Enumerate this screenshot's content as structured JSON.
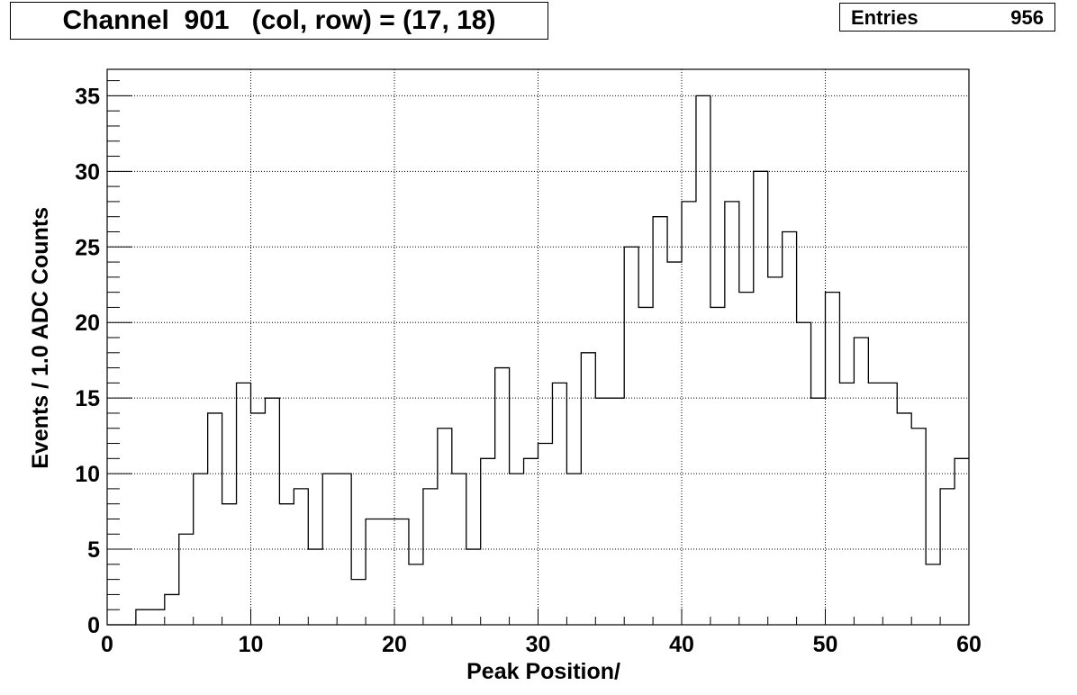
{
  "title_box": {
    "title": "Channel  901   (col, row) = (17, 18)"
  },
  "stats_box": {
    "label": "Entries",
    "value": "956"
  },
  "chart_data": {
    "type": "bar",
    "histogram": true,
    "xlabel": "Peak Position/",
    "ylabel": "Events / 1.0 ADC Counts",
    "xlim": [
      0,
      60
    ],
    "ylim": [
      0,
      36.75
    ],
    "grid": true,
    "bin_width": 1,
    "x_ticks": [
      "0",
      "10",
      "20",
      "30",
      "40",
      "50",
      "60"
    ],
    "y_ticks": [
      "0",
      "5",
      "10",
      "15",
      "20",
      "25",
      "30",
      "35"
    ],
    "bins": [
      0,
      1,
      2,
      3,
      4,
      5,
      6,
      7,
      8,
      9,
      10,
      11,
      12,
      13,
      14,
      15,
      16,
      17,
      18,
      19,
      20,
      21,
      22,
      23,
      24,
      25,
      26,
      27,
      28,
      29,
      30,
      31,
      32,
      33,
      34,
      35,
      36,
      37,
      38,
      39,
      40,
      41,
      42,
      43,
      44,
      45,
      46,
      47,
      48,
      49,
      50,
      51,
      52,
      53,
      54,
      55,
      56,
      57,
      58,
      59
    ],
    "values": [
      0,
      0,
      1,
      1,
      2,
      6,
      10,
      14,
      8,
      16,
      14,
      15,
      8,
      9,
      5,
      10,
      10,
      3,
      7,
      7,
      7,
      4,
      9,
      13,
      10,
      5,
      11,
      17,
      10,
      11,
      12,
      16,
      10,
      18,
      15,
      15,
      25,
      21,
      27,
      24,
      28,
      35,
      21,
      28,
      22,
      30,
      23,
      26,
      20,
      15,
      22,
      16,
      19,
      16,
      16,
      14,
      13,
      4,
      9,
      11
    ]
  }
}
